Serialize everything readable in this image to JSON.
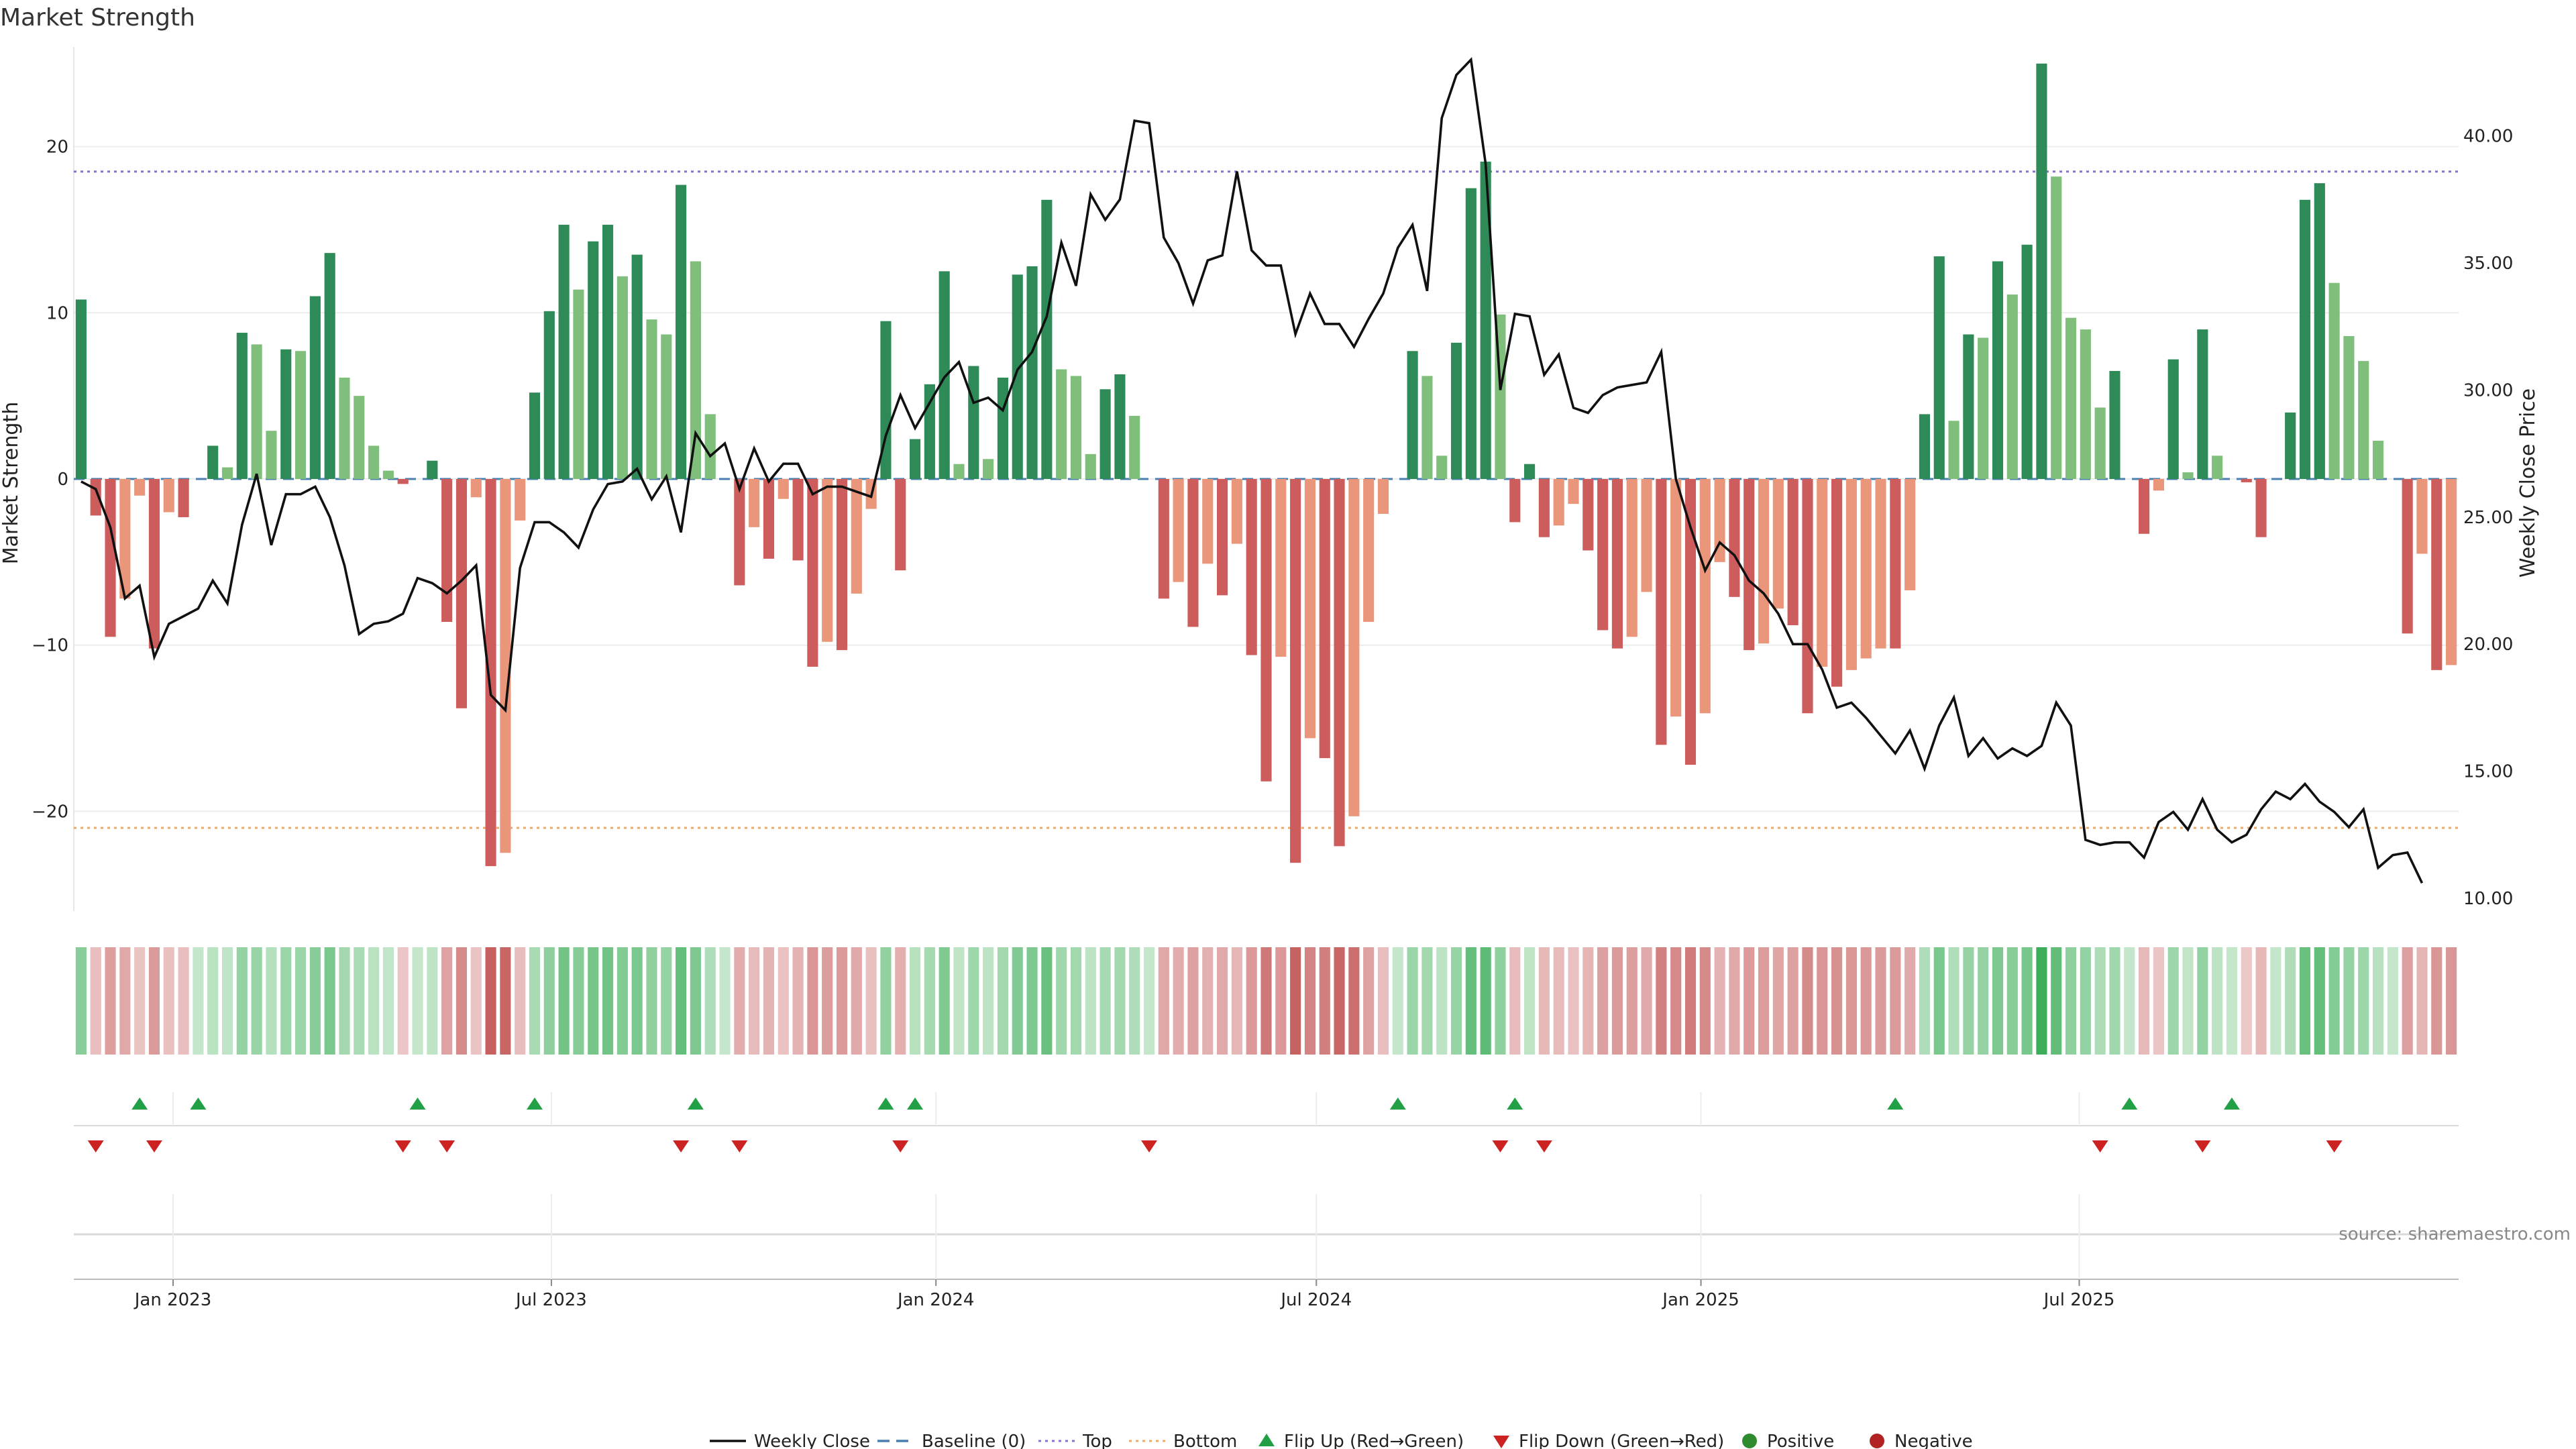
{
  "chart_data": {
    "type": "bar",
    "title": "Market Strength",
    "ylabel": "Market Strength",
    "y2label": "Weekly Close Price",
    "ylim": [
      -26,
      26
    ],
    "y2lim": [
      9.5,
      43.5
    ],
    "yticks": [
      "−20",
      "−10",
      "0",
      "10",
      "20"
    ],
    "y2ticks": [
      "10.00",
      "15.00",
      "20.00",
      "25.00",
      "30.00",
      "35.00",
      "40.00"
    ],
    "xticks": [
      "Jan 2023",
      "Jul 2023",
      "Jan 2024",
      "Jul 2024",
      "Jan 2025",
      "Jul 2025"
    ],
    "top_level": 18.5,
    "bottom_level": -21.0,
    "baseline": 0,
    "grid": true,
    "source": "source: sharemaestro.com",
    "legend": {
      "placement": "bottom-center",
      "items": [
        "Weekly Close",
        "Baseline (0)",
        "Top",
        "Bottom",
        "Flip Up (Red→Green)",
        "Flip Down (Green→Red)",
        "Positive",
        "Negative"
      ]
    },
    "colors": {
      "pos_strong": "#2e8b57",
      "pos_light": "#7fbf7b",
      "neg_strong": "#cd5c5c",
      "neg_light": "#e9967a",
      "price_line": "#111111",
      "top_line": "#8a70cf",
      "bottom_line": "#f0a868",
      "baseline": "#4a7fb0",
      "flip_up": "#22a045",
      "flip_down": "#cc2222",
      "positive_dot": "#2e8b2e",
      "negative_dot": "#b22222"
    },
    "series": [
      {
        "name": "Market Strength",
        "values": [
          10.8,
          -2.2,
          -9.5,
          -7.2,
          -1.0,
          -10.2,
          -2.0,
          -2.3,
          0.0,
          2.0,
          0.7,
          8.8,
          8.1,
          2.9,
          7.8,
          7.7,
          11.0,
          13.6,
          6.1,
          5.0,
          2.0,
          0.5,
          -0.3,
          0.0,
          1.1,
          -8.6,
          -13.8,
          -1.1,
          -23.3,
          -22.5,
          -2.5,
          5.2,
          10.1,
          15.3,
          11.4,
          14.3,
          15.3,
          12.2,
          13.5,
          9.6,
          8.7,
          17.7,
          13.1,
          3.9,
          0.0,
          -6.4,
          -2.9,
          -4.8,
          -1.2,
          -4.9,
          -11.3,
          -9.8,
          -10.3,
          -6.9,
          -1.8,
          9.5,
          -5.5,
          2.4,
          5.7,
          12.5,
          0.9,
          6.8,
          1.2,
          6.1,
          12.3,
          12.8,
          16.8,
          6.6,
          6.2,
          1.5,
          5.4,
          6.3,
          3.8,
          0.0,
          -7.2,
          -6.2,
          -8.9,
          -5.1,
          -7.0,
          -3.9,
          -10.6,
          -18.2,
          -10.7,
          -23.1,
          -15.6,
          -16.8,
          -22.1,
          -20.3,
          -8.6,
          -2.1,
          0.0,
          7.7,
          6.2,
          1.4,
          8.2,
          17.5,
          19.1,
          9.9,
          -2.6,
          0.9,
          -3.5,
          -2.8,
          -1.5,
          -4.3,
          -9.1,
          -10.2,
          -9.5,
          -6.8,
          -16.0,
          -14.3,
          -17.2,
          -14.1,
          -5.0,
          -7.1,
          -10.3,
          -9.9,
          -7.8,
          -8.8,
          -14.1,
          -11.3,
          -12.5,
          -11.5,
          -10.8,
          -10.2,
          -10.2,
          -6.7,
          3.9,
          13.4,
          3.5,
          8.7,
          8.5,
          13.1,
          11.1,
          14.1,
          25.0,
          18.2,
          9.7,
          9.0,
          4.3,
          6.5,
          0.0,
          -3.3,
          -0.7,
          7.2,
          0.4,
          9.0,
          1.4,
          0.0,
          -0.2,
          -3.5,
          0.0,
          4.0,
          16.8,
          17.8,
          11.8,
          8.6,
          7.1,
          2.3,
          0.0,
          -9.3,
          -4.5,
          -11.5,
          -11.2
        ]
      },
      {
        "name": "Weekly Close",
        "values": [
          26.4,
          26.1,
          24.6,
          21.8,
          22.3,
          19.5,
          20.8,
          21.1,
          21.4,
          22.5,
          21.6,
          24.7,
          26.7,
          23.9,
          25.9,
          25.9,
          26.2,
          25.0,
          23.1,
          20.4,
          20.8,
          20.9,
          21.2,
          22.6,
          22.4,
          22.0,
          22.5,
          23.1,
          18.0,
          17.4,
          23.0,
          24.8,
          24.8,
          24.4,
          23.8,
          25.3,
          26.3,
          26.4,
          26.9,
          25.7,
          26.6,
          24.4,
          28.3,
          27.4,
          27.9,
          26.1,
          27.7,
          26.4,
          27.1,
          27.1,
          25.9,
          26.2,
          26.2,
          26.0,
          25.8,
          28.2,
          29.8,
          28.5,
          29.5,
          30.5,
          31.1,
          29.5,
          29.7,
          29.2,
          30.8,
          31.5,
          32.9,
          35.8,
          34.1,
          37.7,
          36.7,
          37.5,
          40.6,
          40.5,
          36.0,
          35.0,
          33.4,
          35.1,
          35.3,
          38.6,
          35.5,
          34.9,
          34.9,
          32.2,
          33.8,
          32.6,
          32.6,
          31.7,
          32.8,
          33.8,
          35.6,
          36.5,
          33.9,
          40.7,
          42.4,
          43.0,
          38.9,
          30.0,
          33.0,
          32.9,
          30.6,
          31.4,
          29.3,
          29.1,
          29.8,
          30.1,
          30.2,
          30.3,
          31.5,
          26.5,
          24.6,
          22.9,
          24.0,
          23.5,
          22.5,
          22.0,
          21.2,
          20.0,
          20.0,
          19.0,
          17.5,
          17.7,
          17.1,
          16.4,
          15.7,
          16.6,
          15.1,
          16.8,
          17.9,
          15.6,
          16.3,
          15.5,
          15.9,
          15.6,
          16.0,
          17.7,
          16.8,
          12.3,
          12.1,
          12.2,
          12.2,
          11.6,
          13.0,
          13.4,
          12.7,
          13.9,
          12.7,
          12.2,
          12.5,
          13.5,
          14.2,
          13.9,
          14.5,
          13.8,
          13.4,
          12.8,
          13.5,
          11.2,
          11.7,
          11.8,
          10.6
        ]
      },
      {
        "name": "Flip Up (Red→Green)",
        "indices": [
          4,
          8,
          23,
          31,
          42,
          55,
          57,
          90,
          98,
          124,
          140,
          147
        ]
      },
      {
        "name": "Flip Down (Green→Red)",
        "indices": [
          1,
          5,
          22,
          25,
          41,
          45,
          56,
          73,
          97,
          100,
          138,
          145,
          154
        ]
      }
    ]
  }
}
